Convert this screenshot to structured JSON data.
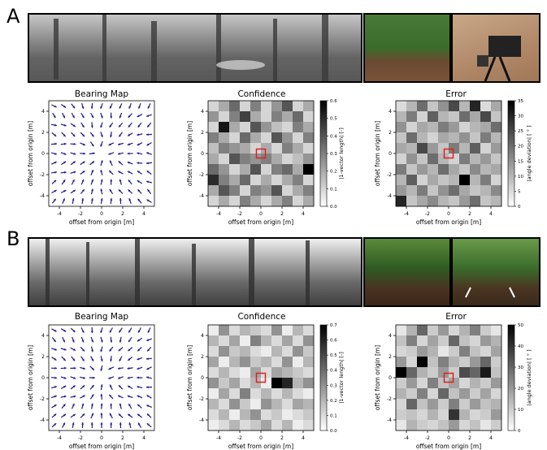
{
  "figure": {
    "panels": [
      {
        "label": "A",
        "plots": [
          {
            "title": "Bearing Map",
            "xlabel": "offset from origin [m]",
            "ylabel": "offset from origin [m]"
          },
          {
            "title": "Confidence",
            "xlabel": "offset from origin [m]",
            "ylabel": "offset from origin [m]",
            "colorbar_label": "|1-vector length| [-]",
            "colorbar_ticks": [
              "0.0",
              "0.1",
              "0.2",
              "0.3",
              "0.4",
              "0.5",
              "0.6"
            ]
          },
          {
            "title": "Error",
            "xlabel": "offset from origin [m]",
            "ylabel": "offset from origin [m]",
            "colorbar_label": "|angle deviation| [ ° ]",
            "colorbar_ticks": [
              "0",
              "5",
              "10",
              "15",
              "20",
              "25",
              "30",
              "35"
            ]
          }
        ]
      },
      {
        "label": "B",
        "plots": [
          {
            "title": "Bearing Map",
            "xlabel": "offset from origin [m]",
            "ylabel": "offset from origin [m]"
          },
          {
            "title": "Confidence",
            "xlabel": "offset from origin [m]",
            "ylabel": "offset from origin [m]",
            "colorbar_label": "|1-vector length| [-]",
            "colorbar_ticks": [
              "0.0",
              "0.1",
              "0.2",
              "0.3",
              "0.4",
              "0.5",
              "0.6",
              "0.7"
            ]
          },
          {
            "title": "Error",
            "xlabel": "offset from origin [m]",
            "ylabel": "offset from origin [m]",
            "colorbar_label": "|angle deviation| [ ° ]",
            "colorbar_ticks": [
              "0",
              "10",
              "20",
              "30",
              "40",
              "50"
            ]
          }
        ]
      }
    ],
    "axis_ticks_x": [
      "-4",
      "-2",
      "0",
      "2",
      "4"
    ],
    "axis_ticks_y": [
      "4",
      "2",
      "0",
      "-2",
      "-4"
    ]
  },
  "colors": {
    "arrow": "#1a1a8c",
    "marker": "#e02020",
    "frame": "#000000"
  },
  "chart_data": [
    {
      "type": "quiver",
      "name": "A bearing map",
      "xlim": [
        -5,
        5
      ],
      "ylim": [
        -5,
        5
      ]
    },
    {
      "type": "heatmap",
      "name": "A confidence",
      "xlim": [
        -5,
        5
      ],
      "ylim": [
        -5,
        5
      ],
      "vmin": 0,
      "vmax": 0.6,
      "values": [
        [
          0.1,
          0.2,
          0.35,
          0.1,
          0.3,
          0.1,
          0.25,
          0.4,
          0.1,
          0.2
        ],
        [
          0.25,
          0.1,
          0.3,
          0.45,
          0.2,
          0.1,
          0.3,
          0.2,
          0.35,
          0.1
        ],
        [
          0.1,
          0.55,
          0.2,
          0.1,
          0.4,
          0.25,
          0.15,
          0.1,
          0.3,
          0.2
        ],
        [
          0.3,
          0.2,
          0.1,
          0.35,
          0.2,
          0.1,
          0.4,
          0.25,
          0.1,
          0.3
        ],
        [
          0.15,
          0.3,
          0.25,
          0.2,
          0.1,
          0.2,
          0.1,
          0.3,
          0.2,
          0.1
        ],
        [
          0.2,
          0.1,
          0.4,
          0.3,
          0.25,
          0.3,
          0.2,
          0.1,
          0.15,
          0.25
        ],
        [
          0.35,
          0.25,
          0.1,
          0.2,
          0.4,
          0.1,
          0.3,
          0.35,
          0.2,
          0.6
        ],
        [
          0.5,
          0.3,
          0.2,
          0.35,
          0.1,
          0.2,
          0.1,
          0.2,
          0.3,
          0.1
        ],
        [
          0.2,
          0.4,
          0.3,
          0.1,
          0.3,
          0.25,
          0.4,
          0.1,
          0.2,
          0.3
        ],
        [
          0.1,
          0.2,
          0.1,
          0.3,
          0.2,
          0.1,
          0.2,
          0.3,
          0.1,
          0.2
        ]
      ]
    },
    {
      "type": "heatmap",
      "name": "A error",
      "xlim": [
        -5,
        5
      ],
      "ylim": [
        -5,
        5
      ],
      "vmin": 0,
      "vmax": 35,
      "values": [
        [
          5,
          10,
          20,
          8,
          15,
          25,
          10,
          30,
          5,
          12
        ],
        [
          10,
          18,
          6,
          22,
          10,
          8,
          20,
          12,
          25,
          8
        ],
        [
          15,
          6,
          12,
          10,
          18,
          14,
          6,
          10,
          12,
          20
        ],
        [
          8,
          20,
          10,
          6,
          12,
          10,
          15,
          8,
          18,
          10
        ],
        [
          12,
          10,
          25,
          14,
          8,
          18,
          10,
          22,
          6,
          14
        ],
        [
          6,
          15,
          8,
          20,
          10,
          6,
          18,
          10,
          14,
          8
        ],
        [
          18,
          8,
          14,
          10,
          20,
          12,
          8,
          16,
          10,
          12
        ],
        [
          10,
          22,
          6,
          12,
          8,
          10,
          35,
          10,
          18,
          6
        ],
        [
          14,
          10,
          18,
          8,
          15,
          20,
          12,
          8,
          10,
          16
        ],
        [
          30,
          8,
          12,
          16,
          10,
          8,
          14,
          20,
          8,
          10
        ]
      ]
    },
    {
      "type": "quiver",
      "name": "B bearing map",
      "xlim": [
        -5,
        5
      ],
      "ylim": [
        -5,
        5
      ]
    },
    {
      "type": "heatmap",
      "name": "B confidence",
      "xlim": [
        -5,
        5
      ],
      "ylim": [
        -5,
        5
      ],
      "vmin": 0,
      "vmax": 0.7,
      "values": [
        [
          0.05,
          0.3,
          0.1,
          0.2,
          0.15,
          0.1,
          0.3,
          0.05,
          0.2,
          0.1
        ],
        [
          0.2,
          0.1,
          0.25,
          0.05,
          0.35,
          0.2,
          0.1,
          0.25,
          0.1,
          0.3
        ],
        [
          0.1,
          0.3,
          0.15,
          0.2,
          0.1,
          0.05,
          0.2,
          0.1,
          0.3,
          0.15
        ],
        [
          0.25,
          0.05,
          0.2,
          0.3,
          0.15,
          0.2,
          0.1,
          0.3,
          0.05,
          0.2
        ],
        [
          0.1,
          0.2,
          0.1,
          0.05,
          0.25,
          0.1,
          0.25,
          0.2,
          0.15,
          0.1
        ],
        [
          0.3,
          0.15,
          0.25,
          0.1,
          0.2,
          0.05,
          0.7,
          0.6,
          0.2,
          0.3
        ],
        [
          0.05,
          0.25,
          0.1,
          0.35,
          0.1,
          0.2,
          0.1,
          0.2,
          0.1,
          0.05
        ],
        [
          0.2,
          0.1,
          0.3,
          0.15,
          0.05,
          0.3,
          0.2,
          0.1,
          0.25,
          0.2
        ],
        [
          0.1,
          0.2,
          0.05,
          0.2,
          0.3,
          0.1,
          0.15,
          0.05,
          0.1,
          0.15
        ],
        [
          0.05,
          0.1,
          0.2,
          0.1,
          0.15,
          0.25,
          0.1,
          0.2,
          0.05,
          0.1
        ]
      ]
    },
    {
      "type": "heatmap",
      "name": "B error",
      "xlim": [
        -5,
        5
      ],
      "ylim": [
        -5,
        5
      ],
      "vmin": 0,
      "vmax": 50,
      "values": [
        [
          5,
          15,
          30,
          10,
          20,
          8,
          15,
          25,
          10,
          5
        ],
        [
          12,
          25,
          8,
          18,
          10,
          30,
          12,
          8,
          20,
          15
        ],
        [
          8,
          10,
          20,
          15,
          5,
          10,
          25,
          12,
          8,
          18
        ],
        [
          20,
          8,
          50,
          12,
          25,
          15,
          10,
          20,
          30,
          10
        ],
        [
          55,
          30,
          15,
          10,
          20,
          10,
          35,
          30,
          45,
          12
        ],
        [
          10,
          20,
          8,
          25,
          12,
          18,
          8,
          15,
          10,
          20
        ],
        [
          15,
          10,
          25,
          8,
          30,
          12,
          20,
          10,
          18,
          8
        ],
        [
          8,
          30,
          12,
          20,
          10,
          25,
          10,
          20,
          12,
          15
        ],
        [
          10,
          12,
          8,
          15,
          8,
          40,
          15,
          8,
          10,
          20
        ],
        [
          5,
          15,
          10,
          8,
          12,
          20,
          8,
          12,
          5,
          10
        ]
      ]
    }
  ]
}
